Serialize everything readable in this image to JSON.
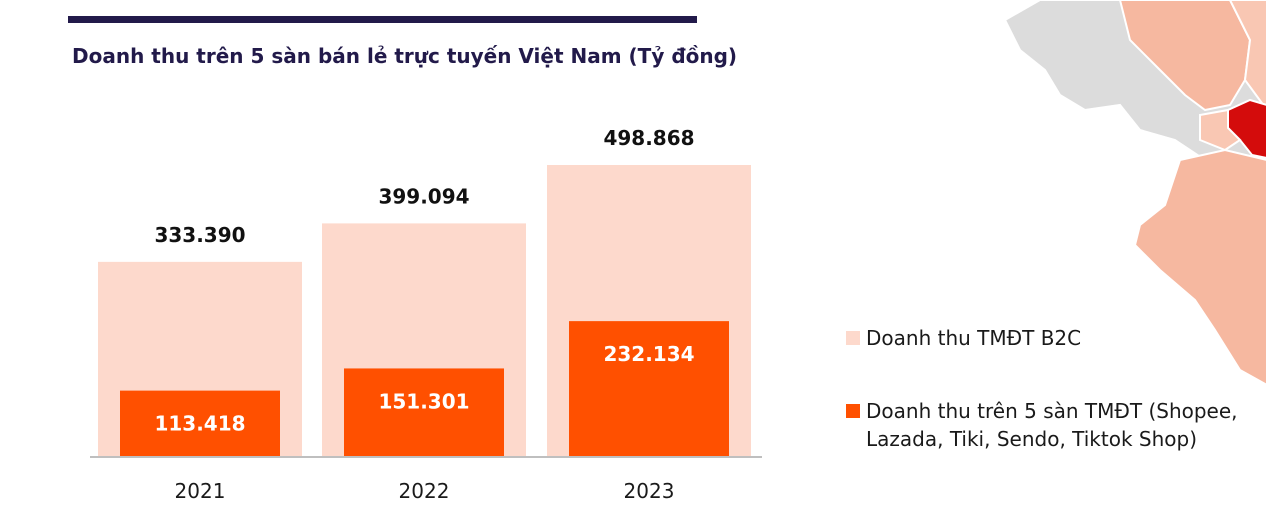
{
  "chart_data": {
    "type": "bar",
    "title": "Doanh thu trên 5 sàn bán lẻ trực tuyến Việt Nam (Tỷ đồng)",
    "categories": [
      "2021",
      "2022",
      "2023"
    ],
    "series": [
      {
        "name": "Doanh thu TMĐT B2C",
        "values": [
          333.39,
          399.094,
          498.868
        ],
        "labels": [
          "333.390",
          "399.094",
          "498.868"
        ],
        "color": "#fdd9cc"
      },
      {
        "name": "Doanh thu trên 5 sàn TMĐT (Shopee, Lazada, Tiki, Sendo, Tiktok Shop)",
        "values": [
          113.418,
          151.301,
          232.134
        ],
        "labels": [
          "113.418",
          "151.301",
          "232.134"
        ],
        "color": "#ff5000"
      }
    ],
    "xlabel": "",
    "ylabel": "",
    "ylim": [
      0,
      500
    ],
    "grid": false,
    "legend": "right",
    "overlapping": true
  },
  "colors": {
    "title": "#221a4a",
    "axis": "#bfbfbf",
    "map_gray": "#dcdcdc",
    "map_light": "#f6b8a0",
    "map_dark": "#d40c0c"
  }
}
